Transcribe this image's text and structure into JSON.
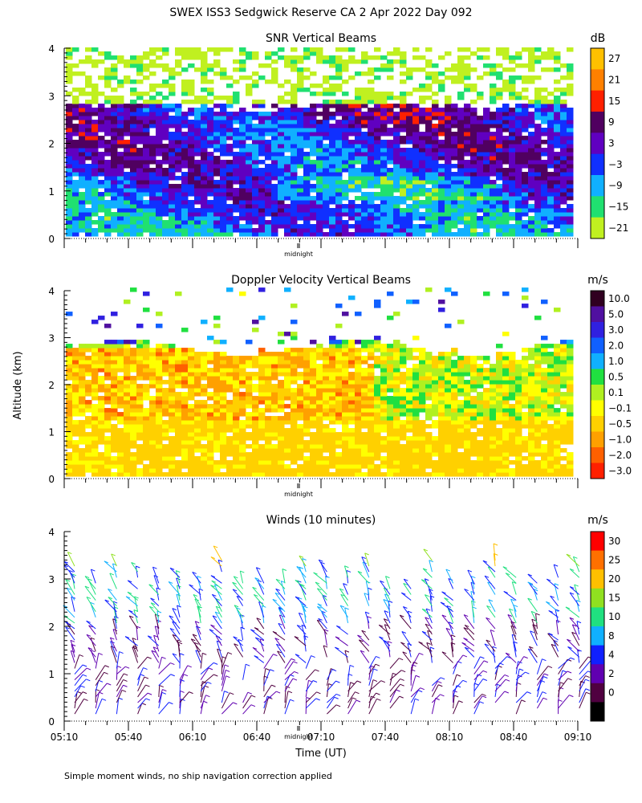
{
  "title": "SWEX ISS3 Sedgwick Reserve CA    2 Apr 2022 Day 092",
  "y_axis_label": "Altitude (km)",
  "x_axis_label": "Time (UT)",
  "footnote": "Simple moment winds, no ship navigation correction applied",
  "midnight_label": "midnight",
  "x_ticks": [
    "05:10",
    "05:40",
    "06:10",
    "06:40",
    "07:10",
    "07:40",
    "08:10",
    "08:40",
    "09:10"
  ],
  "y_ticks": [
    "0",
    "1",
    "2",
    "3",
    "4"
  ],
  "chart_data": [
    {
      "type": "heatmap",
      "title": "SNR Vertical Beams",
      "units": "dB",
      "ylim": [
        0,
        4
      ],
      "colorbar_labels": [
        "27",
        "21",
        "15",
        "9",
        "3",
        "−3",
        "−9",
        "−15",
        "−21"
      ],
      "colorbar_colors": [
        "#ffc000",
        "#ff8000",
        "#ff2000",
        "#500060",
        "#6000c0",
        "#1030ff",
        "#10b0ff",
        "#20e070",
        "#c0f020"
      ]
    },
    {
      "type": "heatmap",
      "title": "Doppler Velocity Vertical Beams",
      "units": "m/s",
      "ylim": [
        0,
        4
      ],
      "colorbar_labels": [
        "10.0",
        "5.0",
        "3.0",
        "2.0",
        "1.0",
        "0.5",
        "0.1",
        "−0.1",
        "−0.5",
        "−1.0",
        "−2.0",
        "−3.0"
      ],
      "colorbar_colors": [
        "#300020",
        "#5010a0",
        "#3020e0",
        "#1060ff",
        "#10b0ff",
        "#20e040",
        "#b0f020",
        "#ffff00",
        "#ffd000",
        "#ffa000",
        "#ff6000",
        "#ff2000"
      ]
    },
    {
      "type": "scatter",
      "title": "Winds (10 minutes)",
      "units": "m/s",
      "ylim": [
        0,
        4
      ],
      "colorbar_labels": [
        "30",
        "25",
        "20",
        "15",
        "10",
        "8",
        "4",
        "2",
        "0"
      ],
      "colorbar_colors": [
        "#ff0000",
        "#ff7000",
        "#ffc000",
        "#90e020",
        "#20e080",
        "#10b0ff",
        "#1020ff",
        "#6000b0",
        "#500040",
        "#000000"
      ]
    }
  ]
}
